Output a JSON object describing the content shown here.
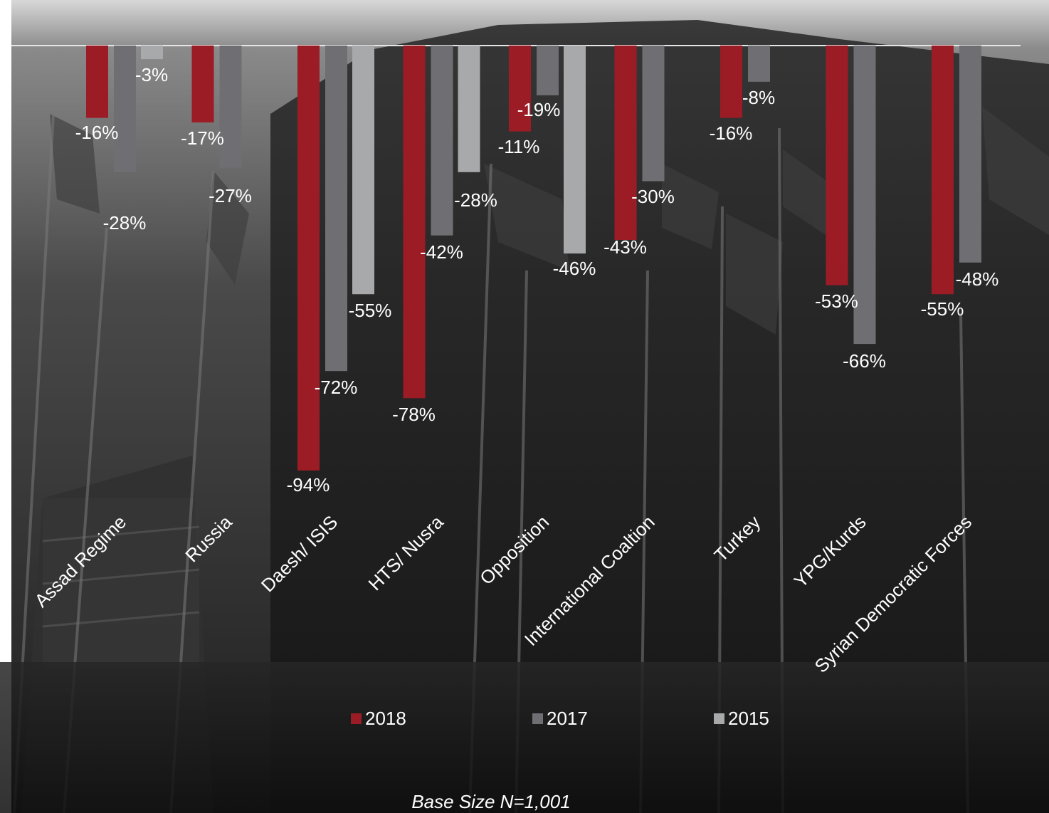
{
  "colors": {
    "series_2018": "#9c1c25",
    "series_2017": "#6f6f73",
    "series_2015": "#a7a9ab",
    "text": "#ffffff",
    "axis_line": "#e6e6e6"
  },
  "background": {
    "description_icon": "building-with-flags-photo"
  },
  "chart_data": {
    "type": "bar",
    "orientation": "vertical-negative",
    "categories": [
      "Assad Regime",
      "Russia",
      "Daesh/ ISIS",
      "HTS/ Nusra",
      "Opposition",
      "International Coaltion",
      "Turkey",
      "YPG/Kurds",
      "Syrian Democratic Forces"
    ],
    "series": [
      {
        "name": "2018",
        "values": [
          -16,
          -17,
          -94,
          -78,
          -19,
          -43,
          -16,
          -53,
          -55
        ],
        "labels": [
          "-16%",
          "-17%",
          "-94%",
          "-78%",
          "-19%",
          "-43%",
          "-16%",
          "-53%",
          "-55%"
        ]
      },
      {
        "name": "2017",
        "values": [
          -28,
          -27,
          -72,
          -42,
          -11,
          -30,
          -8,
          -66,
          -48
        ],
        "labels": [
          "-28%",
          "-27%",
          "-72%",
          "-42%",
          "-11%",
          "-30%",
          "-8%",
          "-66%",
          "-48%"
        ]
      },
      {
        "name": "2015",
        "values": [
          -3,
          null,
          -55,
          -28,
          -46,
          null,
          null,
          null,
          null
        ],
        "labels": [
          "-3%",
          null,
          "-55%",
          "-28%",
          "-46%",
          null,
          null,
          null,
          null
        ]
      }
    ],
    "ylim": [
      -100,
      0
    ],
    "grid": false,
    "legend_position": "bottom",
    "title": "",
    "xlabel": "",
    "ylabel": ""
  },
  "footnote": "Base Size N=1,001"
}
